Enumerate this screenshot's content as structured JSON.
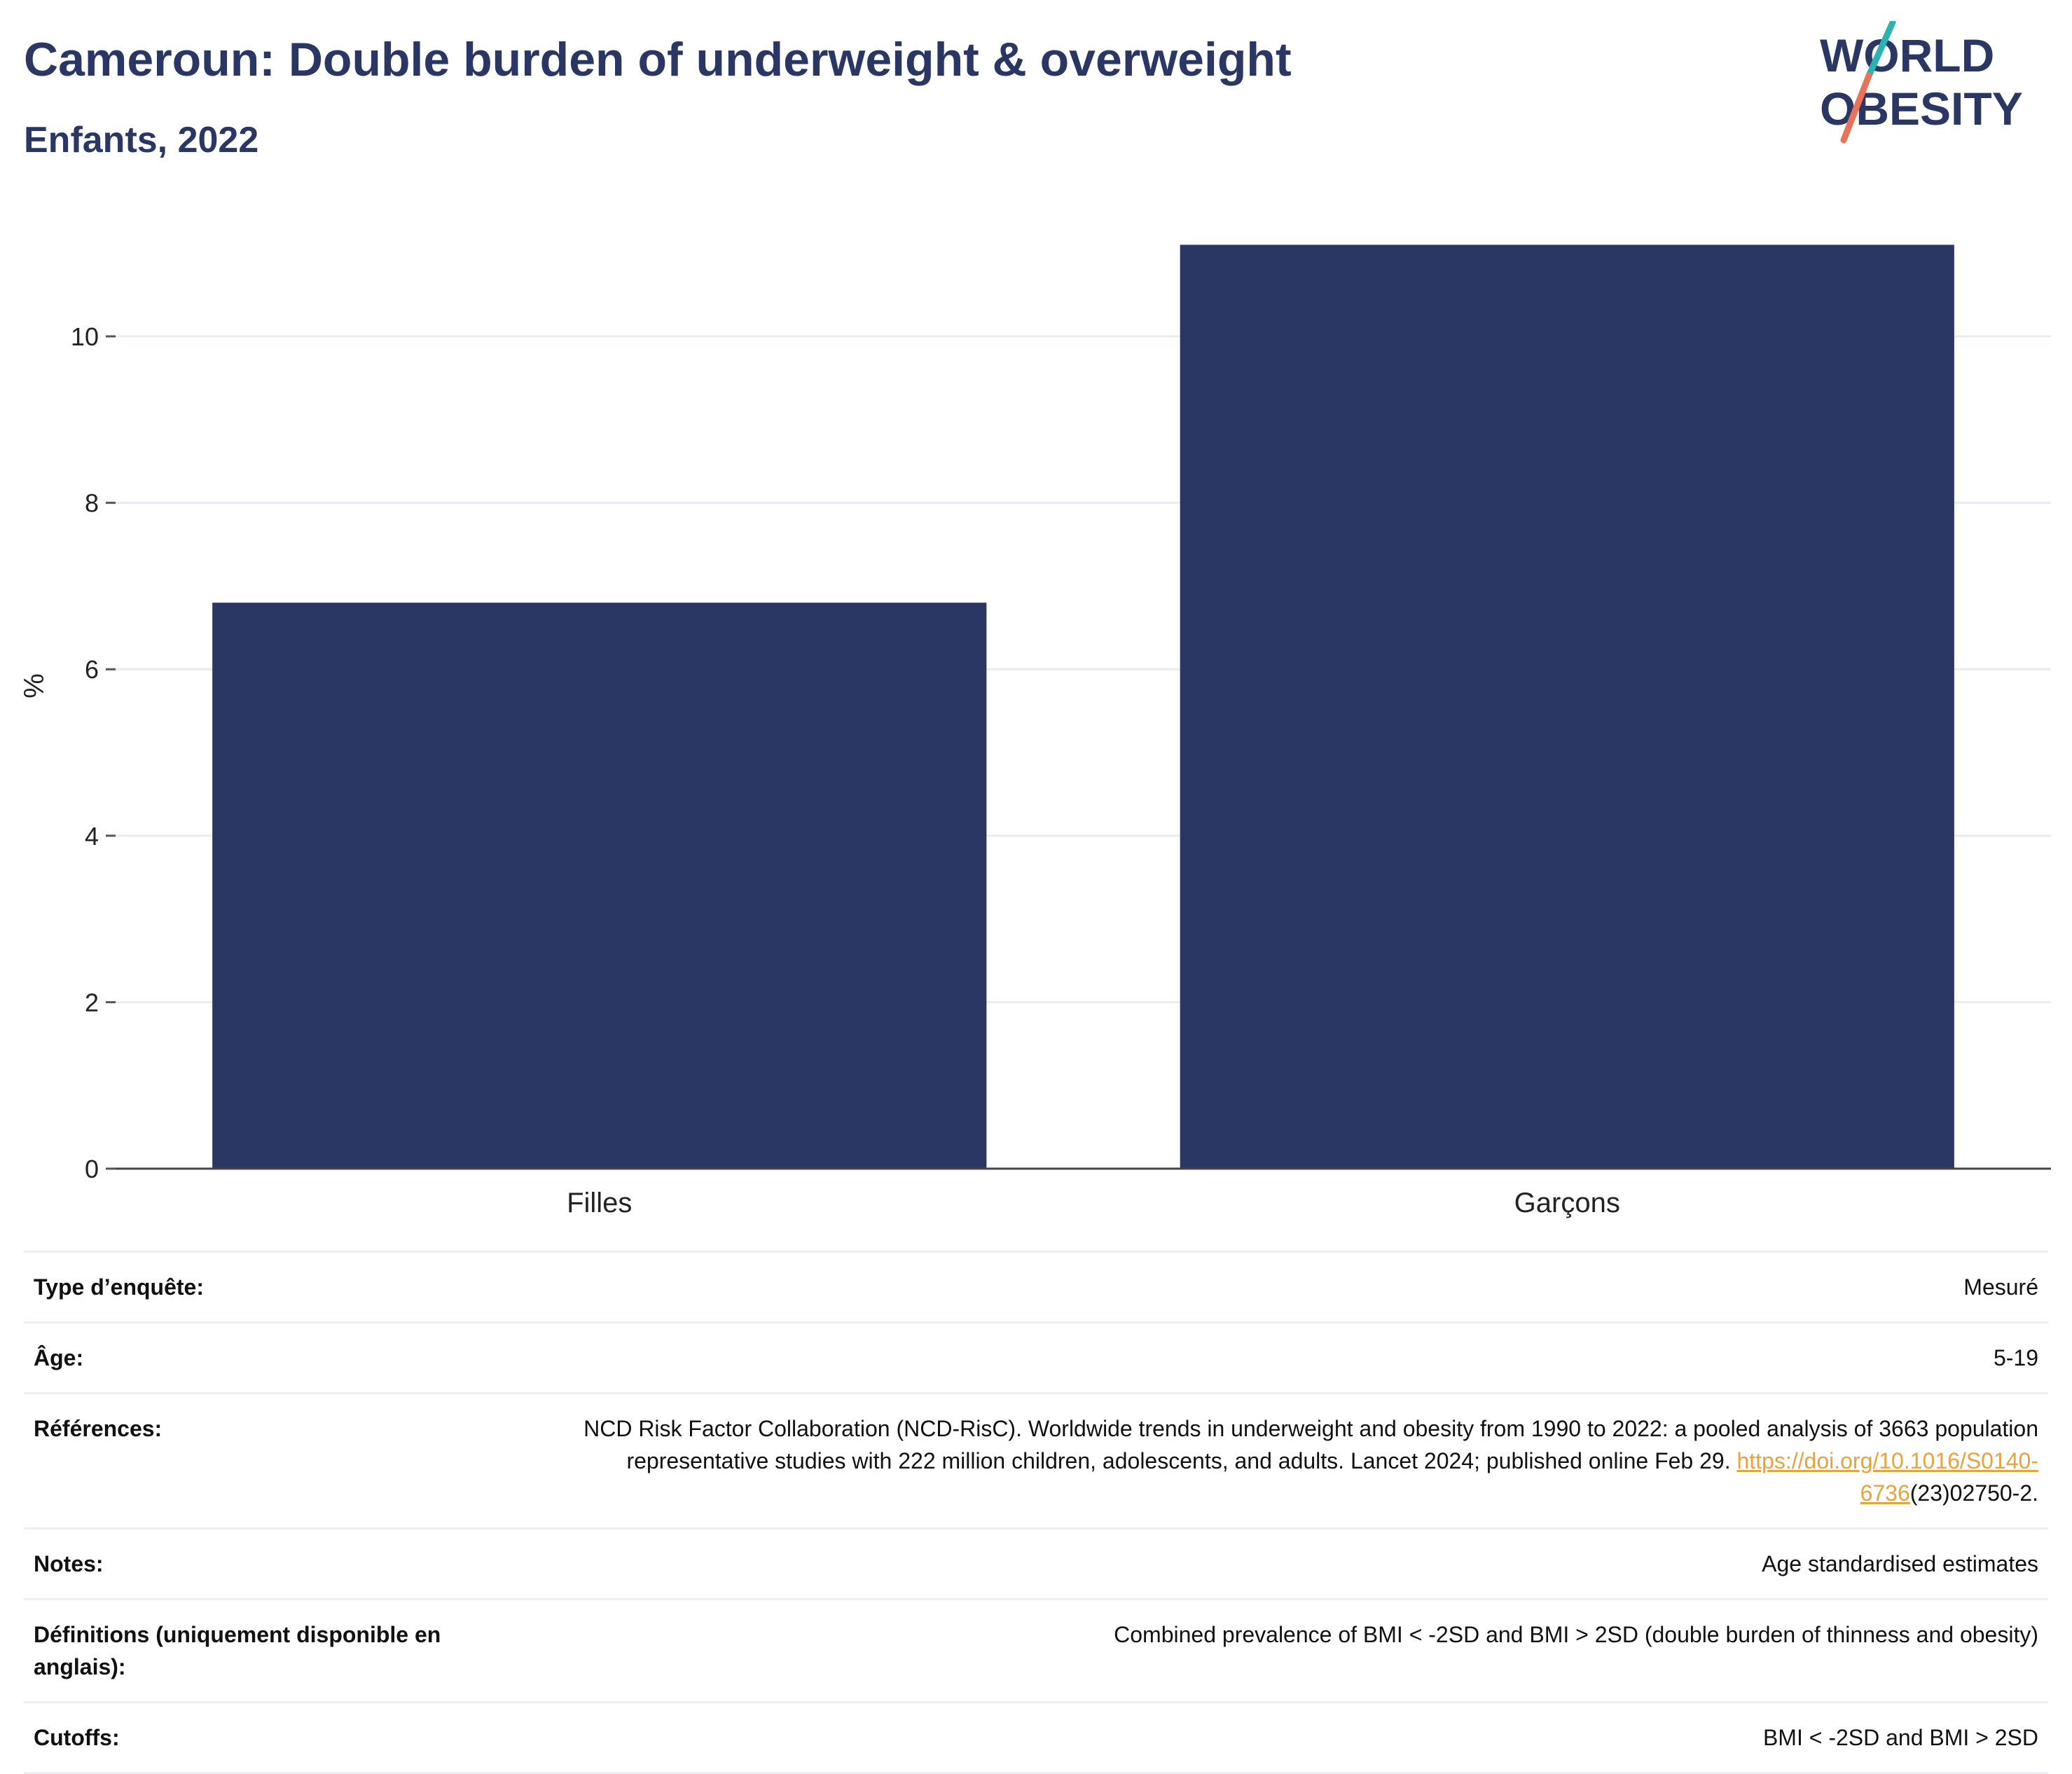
{
  "header": {
    "title": "Cameroun: Double burden of underweight & overweight",
    "subtitle": "Enfants, 2022"
  },
  "logo": {
    "line1": "WORLD",
    "line2": "OBESITY",
    "colors": {
      "text": "#2a3663",
      "slash_top": "#2ab3b0",
      "slash_bottom": "#e8735a"
    }
  },
  "chart_data": {
    "type": "bar",
    "categories": [
      "Filles",
      "Garçons"
    ],
    "values": [
      6.8,
      11.1
    ],
    "title": "Cameroun: Double burden of underweight & overweight",
    "subtitle": "Enfants, 2022",
    "xlabel": "",
    "ylabel": "%",
    "ylim": [
      0,
      11.6
    ],
    "yticks": [
      0,
      2,
      4,
      6,
      8,
      10
    ],
    "grid": true,
    "bar_color": "#2a3663"
  },
  "meta": {
    "rows": [
      {
        "key": "Type d’enquête:",
        "value": "Mesuré"
      },
      {
        "key": "Âge:",
        "value": "5-19"
      },
      {
        "key": "Références:",
        "value": "NCD Risk Factor Collaboration (NCD-RisC). Worldwide trends in underweight and obesity from 1990 to 2022: a pooled analysis of 3663 population representative studies with 222 million children, adolescents, and adults. Lancet 2024; published online Feb 29.",
        "link": "https://doi.org/10.1016/S0140-6736",
        "suffix": "(23)02750-2."
      },
      {
        "key": "Notes:",
        "value": "Age standardised estimates"
      },
      {
        "key": "Définitions (uniquement disponible en anglais):",
        "value": "Combined prevalence of BMI < -2SD and BMI > 2SD (double burden of thinness and obesity)"
      },
      {
        "key": "Cutoffs:",
        "value": "BMI < -2SD and BMI > 2SD"
      }
    ]
  }
}
